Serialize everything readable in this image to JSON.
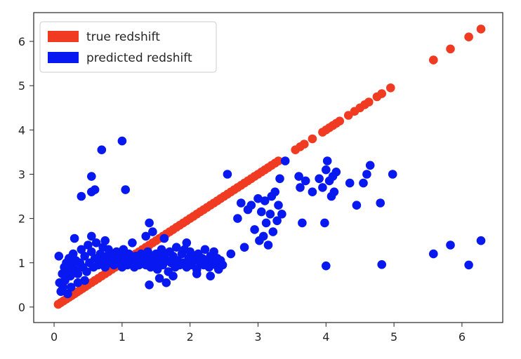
{
  "chart_data": {
    "type": "scatter",
    "title": "",
    "xlabel": "",
    "ylabel": "",
    "xlim": [
      -0.3,
      6.6
    ],
    "ylim": [
      -0.35,
      6.65
    ],
    "x_ticks": [
      "0",
      "1",
      "2",
      "3",
      "4",
      "5",
      "6"
    ],
    "y_ticks": [
      "0",
      "1",
      "2",
      "3",
      "4",
      "5",
      "6"
    ],
    "grid": false,
    "legend_position": "upper-left",
    "series": [
      {
        "name": "true redshift",
        "color": "#f03a22",
        "points": [
          [
            0.06,
            0.06
          ],
          [
            0.1,
            0.1
          ],
          [
            0.14,
            0.14
          ],
          [
            0.18,
            0.18
          ],
          [
            0.22,
            0.22
          ],
          [
            0.26,
            0.26
          ],
          [
            0.3,
            0.3
          ],
          [
            0.34,
            0.34
          ],
          [
            0.38,
            0.38
          ],
          [
            0.42,
            0.42
          ],
          [
            0.46,
            0.46
          ],
          [
            0.5,
            0.5
          ],
          [
            0.55,
            0.55
          ],
          [
            0.6,
            0.6
          ],
          [
            0.65,
            0.65
          ],
          [
            0.7,
            0.7
          ],
          [
            0.75,
            0.75
          ],
          [
            0.8,
            0.8
          ],
          [
            0.85,
            0.85
          ],
          [
            0.9,
            0.9
          ],
          [
            0.95,
            0.95
          ],
          [
            1.0,
            1.0
          ],
          [
            1.05,
            1.05
          ],
          [
            1.1,
            1.1
          ],
          [
            1.15,
            1.15
          ],
          [
            1.2,
            1.2
          ],
          [
            1.25,
            1.25
          ],
          [
            1.3,
            1.3
          ],
          [
            1.35,
            1.35
          ],
          [
            1.4,
            1.4
          ],
          [
            1.45,
            1.45
          ],
          [
            1.5,
            1.5
          ],
          [
            1.55,
            1.55
          ],
          [
            1.6,
            1.6
          ],
          [
            1.65,
            1.65
          ],
          [
            1.7,
            1.7
          ],
          [
            1.75,
            1.75
          ],
          [
            1.8,
            1.8
          ],
          [
            1.85,
            1.85
          ],
          [
            1.9,
            1.9
          ],
          [
            1.95,
            1.95
          ],
          [
            2.0,
            2.0
          ],
          [
            2.05,
            2.05
          ],
          [
            2.1,
            2.1
          ],
          [
            2.15,
            2.15
          ],
          [
            2.2,
            2.2
          ],
          [
            2.25,
            2.25
          ],
          [
            2.3,
            2.3
          ],
          [
            2.35,
            2.35
          ],
          [
            2.4,
            2.4
          ],
          [
            2.45,
            2.45
          ],
          [
            2.5,
            2.5
          ],
          [
            2.55,
            2.55
          ],
          [
            2.6,
            2.6
          ],
          [
            2.65,
            2.65
          ],
          [
            2.7,
            2.7
          ],
          [
            2.75,
            2.75
          ],
          [
            2.8,
            2.8
          ],
          [
            2.85,
            2.85
          ],
          [
            2.9,
            2.9
          ],
          [
            2.95,
            2.95
          ],
          [
            3.0,
            3.0
          ],
          [
            3.05,
            3.05
          ],
          [
            3.1,
            3.1
          ],
          [
            3.15,
            3.15
          ],
          [
            3.2,
            3.2
          ],
          [
            3.25,
            3.25
          ],
          [
            3.3,
            3.3
          ],
          [
            3.55,
            3.55
          ],
          [
            3.62,
            3.62
          ],
          [
            3.68,
            3.68
          ],
          [
            3.8,
            3.8
          ],
          [
            3.95,
            3.95
          ],
          [
            4.0,
            4.0
          ],
          [
            4.05,
            4.05
          ],
          [
            4.1,
            4.1
          ],
          [
            4.15,
            4.15
          ],
          [
            4.2,
            4.2
          ],
          [
            4.33,
            4.33
          ],
          [
            4.42,
            4.42
          ],
          [
            4.5,
            4.5
          ],
          [
            4.57,
            4.57
          ],
          [
            4.63,
            4.63
          ],
          [
            4.75,
            4.75
          ],
          [
            4.82,
            4.82
          ],
          [
            4.95,
            4.95
          ],
          [
            5.58,
            5.58
          ],
          [
            5.83,
            5.83
          ],
          [
            6.1,
            6.1
          ],
          [
            6.28,
            6.28
          ]
        ]
      },
      {
        "name": "predicted redshift",
        "color": "#0718f0",
        "points": [
          [
            0.07,
            1.15
          ],
          [
            0.08,
            0.55
          ],
          [
            0.1,
            0.35
          ],
          [
            0.12,
            0.75
          ],
          [
            0.13,
            0.45
          ],
          [
            0.15,
            0.9
          ],
          [
            0.16,
            0.6
          ],
          [
            0.18,
            1.0
          ],
          [
            0.2,
            0.8
          ],
          [
            0.22,
            1.1
          ],
          [
            0.24,
            0.7
          ],
          [
            0.26,
            0.95
          ],
          [
            0.28,
            1.2
          ],
          [
            0.3,
            0.85
          ],
          [
            0.32,
            1.05
          ],
          [
            0.35,
            0.75
          ],
          [
            0.38,
            1.0
          ],
          [
            0.4,
            1.3
          ],
          [
            0.42,
            0.9
          ],
          [
            0.45,
            1.15
          ],
          [
            0.48,
            0.8
          ],
          [
            0.5,
            1.4
          ],
          [
            0.52,
            1.0
          ],
          [
            0.55,
            1.25
          ],
          [
            0.58,
            0.9
          ],
          [
            0.6,
            1.1
          ],
          [
            0.62,
            1.45
          ],
          [
            0.65,
            0.95
          ],
          [
            0.68,
            1.2
          ],
          [
            0.7,
            1.05
          ],
          [
            0.72,
            1.35
          ],
          [
            0.75,
            0.9
          ],
          [
            0.78,
            1.15
          ],
          [
            0.8,
            1.3
          ],
          [
            0.82,
            1.0
          ],
          [
            0.85,
            1.2
          ],
          [
            0.88,
            0.95
          ],
          [
            0.9,
            1.1
          ],
          [
            0.92,
            1.25
          ],
          [
            0.95,
            1.0
          ],
          [
            0.98,
            1.15
          ],
          [
            1.0,
            0.9
          ],
          [
            1.02,
            1.3
          ],
          [
            1.05,
            1.05
          ],
          [
            1.08,
            0.95
          ],
          [
            1.1,
            1.2
          ],
          [
            1.12,
            1.0
          ],
          [
            1.15,
            1.1
          ],
          [
            1.18,
            0.9
          ],
          [
            1.2,
            1.15
          ],
          [
            1.22,
            1.05
          ],
          [
            1.25,
            0.95
          ],
          [
            1.28,
            1.2
          ],
          [
            1.3,
            1.0
          ],
          [
            1.33,
            1.1
          ],
          [
            1.35,
            0.95
          ],
          [
            1.38,
            1.25
          ],
          [
            1.4,
            1.05
          ],
          [
            1.42,
            0.9
          ],
          [
            1.45,
            1.15
          ],
          [
            1.48,
            1.0
          ],
          [
            1.5,
            1.2
          ],
          [
            1.52,
            0.85
          ],
          [
            1.55,
            1.1
          ],
          [
            1.58,
            1.3
          ],
          [
            1.6,
            0.95
          ],
          [
            1.62,
            1.15
          ],
          [
            1.65,
            1.05
          ],
          [
            1.68,
            0.8
          ],
          [
            1.7,
            1.25
          ],
          [
            1.72,
            1.0
          ],
          [
            1.75,
            1.15
          ],
          [
            1.78,
            0.9
          ],
          [
            1.8,
            1.35
          ],
          [
            1.82,
            1.05
          ],
          [
            1.85,
            0.95
          ],
          [
            1.88,
            1.2
          ],
          [
            1.9,
            1.0
          ],
          [
            1.92,
            1.3
          ],
          [
            1.95,
            0.9
          ],
          [
            1.98,
            1.1
          ],
          [
            2.0,
            1.25
          ],
          [
            2.02,
            0.95
          ],
          [
            2.05,
            1.15
          ],
          [
            2.08,
            1.05
          ],
          [
            2.1,
            0.85
          ],
          [
            2.12,
            1.2
          ],
          [
            2.15,
            1.0
          ],
          [
            2.18,
            1.1
          ],
          [
            2.2,
            0.95
          ],
          [
            2.22,
            1.3
          ],
          [
            2.25,
            1.05
          ],
          [
            2.28,
            0.9
          ],
          [
            2.3,
            1.15
          ],
          [
            2.33,
            1.0
          ],
          [
            2.35,
            1.25
          ],
          [
            2.38,
            0.95
          ],
          [
            2.4,
            1.1
          ],
          [
            2.42,
            0.85
          ],
          [
            2.45,
            1.05
          ],
          [
            2.48,
            0.95
          ],
          [
            0.3,
            1.55
          ],
          [
            0.55,
            1.6
          ],
          [
            0.75,
            1.5
          ],
          [
            1.15,
            1.45
          ],
          [
            1.35,
            1.6
          ],
          [
            1.45,
            1.7
          ],
          [
            1.62,
            1.55
          ],
          [
            1.95,
            1.45
          ],
          [
            0.2,
            0.3
          ],
          [
            0.25,
            0.45
          ],
          [
            0.35,
            0.55
          ],
          [
            0.45,
            0.6
          ],
          [
            1.4,
            0.5
          ],
          [
            1.55,
            0.65
          ],
          [
            1.65,
            0.55
          ],
          [
            1.75,
            0.7
          ],
          [
            2.1,
            0.75
          ],
          [
            2.3,
            0.7
          ],
          [
            1.4,
            1.9
          ],
          [
            0.4,
            2.5
          ],
          [
            0.55,
            2.6
          ],
          [
            0.6,
            2.65
          ],
          [
            0.55,
            2.95
          ],
          [
            0.7,
            3.55
          ],
          [
            1.0,
            3.75
          ],
          [
            1.05,
            2.65
          ],
          [
            2.55,
            3.0
          ],
          [
            2.6,
            1.2
          ],
          [
            2.7,
            2.0
          ],
          [
            2.75,
            2.35
          ],
          [
            2.8,
            1.35
          ],
          [
            2.85,
            2.2
          ],
          [
            2.9,
            2.3
          ],
          [
            2.95,
            1.75
          ],
          [
            3.0,
            2.45
          ],
          [
            3.02,
            1.5
          ],
          [
            3.05,
            2.15
          ],
          [
            3.08,
            1.6
          ],
          [
            3.1,
            2.4
          ],
          [
            3.12,
            1.9
          ],
          [
            3.15,
            1.4
          ],
          [
            3.18,
            2.1
          ],
          [
            3.2,
            2.5
          ],
          [
            3.22,
            1.7
          ],
          [
            3.25,
            2.6
          ],
          [
            3.28,
            1.95
          ],
          [
            3.3,
            2.3
          ],
          [
            3.32,
            2.9
          ],
          [
            3.35,
            2.1
          ],
          [
            3.4,
            3.3
          ],
          [
            3.6,
            2.95
          ],
          [
            3.62,
            2.7
          ],
          [
            3.65,
            1.9
          ],
          [
            3.7,
            2.85
          ],
          [
            3.8,
            2.6
          ],
          [
            3.9,
            2.9
          ],
          [
            3.95,
            2.7
          ],
          [
            4.0,
            3.1
          ],
          [
            4.02,
            3.3
          ],
          [
            4.05,
            2.85
          ],
          [
            4.08,
            2.5
          ],
          [
            4.1,
            2.95
          ],
          [
            4.12,
            2.6
          ],
          [
            4.15,
            3.05
          ],
          [
            4.35,
            2.8
          ],
          [
            4.45,
            2.3
          ],
          [
            4.55,
            2.8
          ],
          [
            4.6,
            3.0
          ],
          [
            4.65,
            3.2
          ],
          [
            4.8,
            2.35
          ],
          [
            4.98,
            3.0
          ],
          [
            3.98,
            1.9
          ],
          [
            4.0,
            0.93
          ],
          [
            4.82,
            0.96
          ],
          [
            5.58,
            1.2
          ],
          [
            5.83,
            1.4
          ],
          [
            6.1,
            0.95
          ],
          [
            6.28,
            1.5
          ]
        ]
      }
    ]
  }
}
